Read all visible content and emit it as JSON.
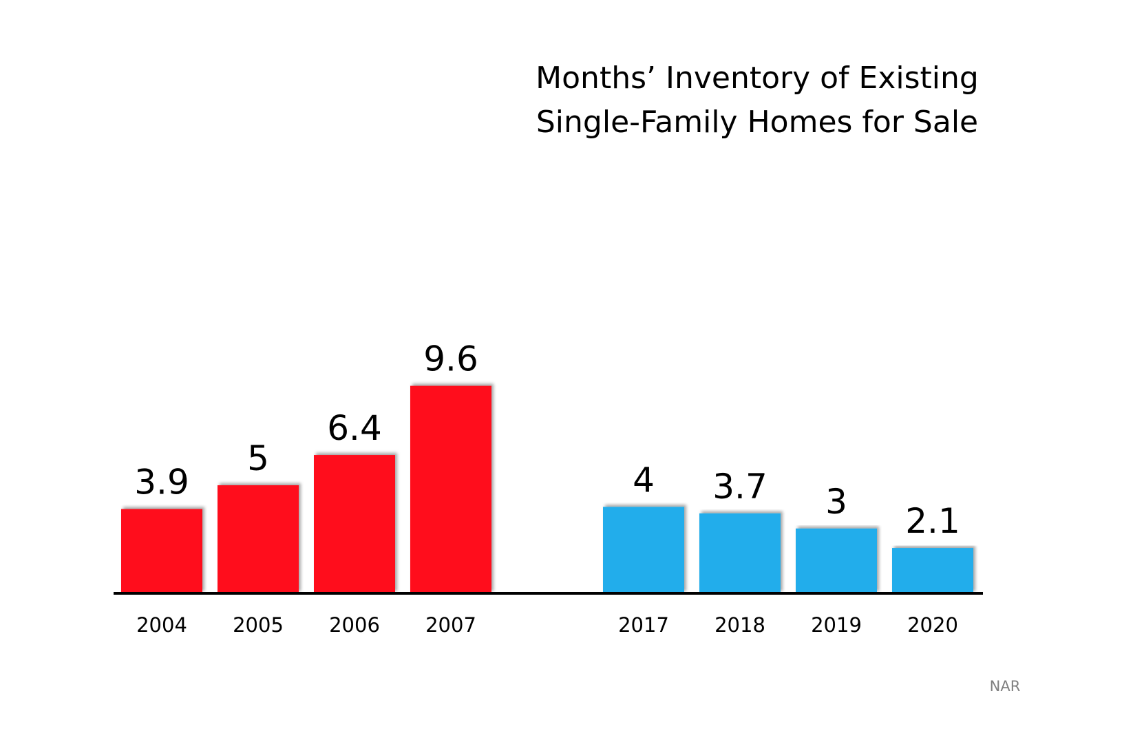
{
  "chart_data": {
    "type": "bar",
    "title_lines": [
      "Months’ Inventory of Existing",
      "Single-Family Homes for Sale"
    ],
    "categories": [
      "2004",
      "2005",
      "2006",
      "2007",
      "2017",
      "2018",
      "2019",
      "2020"
    ],
    "values": [
      3.9,
      5,
      6.4,
      9.6,
      4,
      3.7,
      3,
      2.1
    ],
    "value_labels": [
      "3.9",
      "5",
      "6.4",
      "9.6",
      "4",
      "3.7",
      "3",
      "2.1"
    ],
    "bar_colors": [
      "#FF0D1F",
      "#FF0D1F",
      "#FF0D1F",
      "#FF0D1F",
      "#23ADEB",
      "#23ADEB",
      "#23ADEB",
      "#23ADEB"
    ],
    "axis_color": "#000000",
    "ylim": [
      0,
      10
    ],
    "grid": false,
    "source": "NAR"
  }
}
